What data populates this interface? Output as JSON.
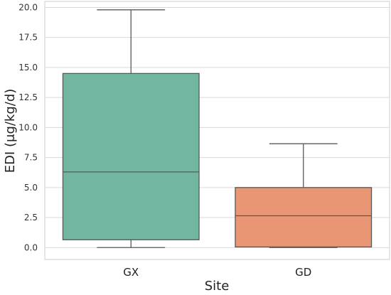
{
  "chart_data": {
    "type": "box",
    "xlabel": "Site",
    "ylabel": "EDI (μg/kg/d)",
    "ylim": [
      -0.99,
      20.5
    ],
    "yticks": [
      "0.0",
      "2.5",
      "5.0",
      "7.5",
      "10.0",
      "12.5",
      "15.0",
      "17.5",
      "20.0"
    ],
    "ytick_values": [
      0,
      2.5,
      5,
      7.5,
      10,
      12.5,
      15,
      17.5,
      20
    ],
    "grid": "horizontal",
    "legend": "none",
    "categories": [
      "GX",
      "GD"
    ],
    "boxes": [
      {
        "category": "GX",
        "min": 0.0,
        "q1": 0.65,
        "median": 6.3,
        "q3": 14.5,
        "max": 19.8,
        "color": "#72b6a1"
      },
      {
        "category": "GD",
        "min": 0.0,
        "q1": 0.05,
        "median": 2.65,
        "q3": 5.0,
        "max": 8.65,
        "color": "#e99675"
      }
    ]
  }
}
